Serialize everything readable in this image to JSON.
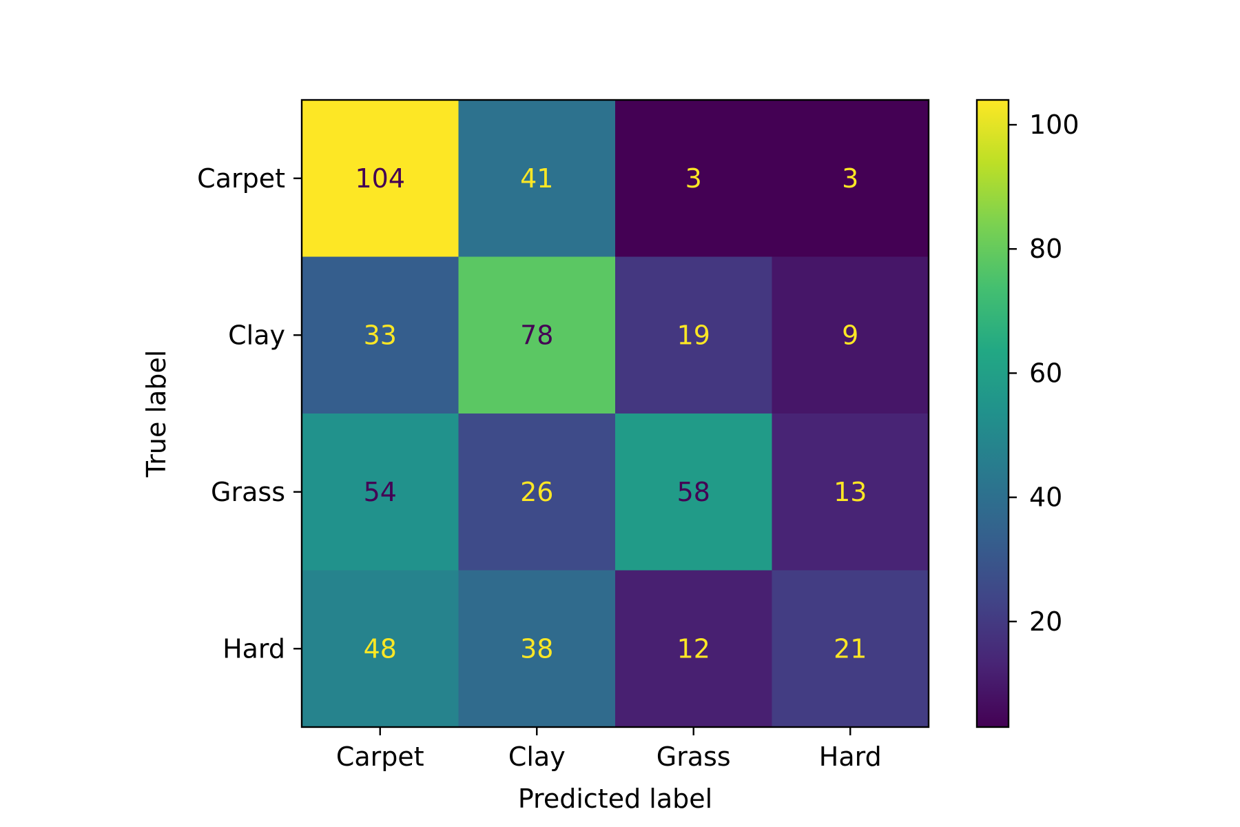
{
  "chart_data": {
    "type": "heatmap",
    "xlabel": "Predicted label",
    "ylabel": "True label",
    "x_categories": [
      "Carpet",
      "Clay",
      "Grass",
      "Hard"
    ],
    "y_categories": [
      "Carpet",
      "Clay",
      "Grass",
      "Hard"
    ],
    "matrix": [
      [
        104,
        41,
        3,
        3
      ],
      [
        33,
        78,
        19,
        9
      ],
      [
        54,
        26,
        58,
        13
      ],
      [
        48,
        38,
        12,
        21
      ]
    ],
    "colormap": "viridis",
    "colorbar": {
      "range": [
        3,
        104
      ],
      "ticks": [
        20,
        40,
        60,
        80,
        100
      ],
      "tick_labels": [
        "20",
        "40",
        "60",
        "80",
        "100"
      ]
    },
    "text_colors": {
      "on_dark": "#fde725",
      "on_light": "#440154"
    }
  }
}
